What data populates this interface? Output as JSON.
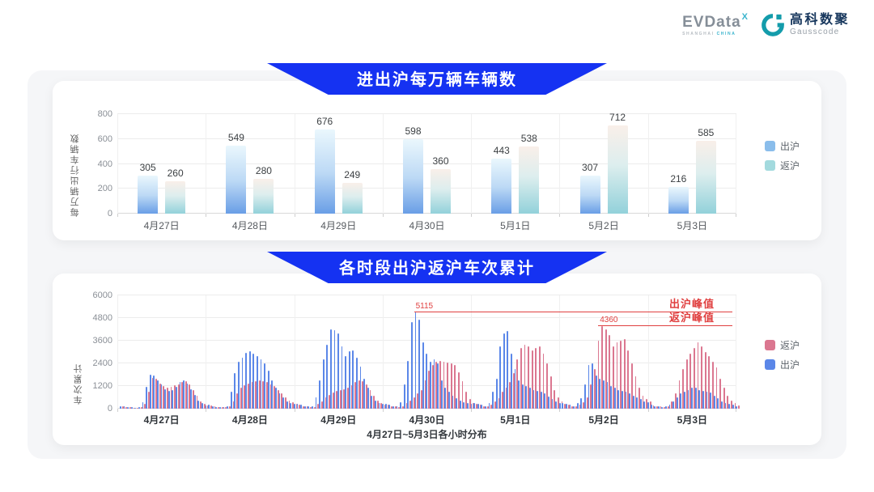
{
  "header": {
    "evdata": {
      "brand": "EVData",
      "sup": "X",
      "sub1": "SHANGHAI ",
      "sub2": "CHINA"
    },
    "gausscode": {
      "cn": "高科数聚",
      "en": "Gausscode"
    }
  },
  "colors": {
    "accent": "#1532f2",
    "red": "#e04040",
    "c1_out_legend": "#8abdeb",
    "c1_ret_legend": "#a3dade",
    "c2_out": "#5b87e8",
    "c2_ret": "#db7790"
  },
  "chart_data": [
    {
      "type": "bar",
      "title": "进出沪每万辆车辆数",
      "ylabel": "每万辆出行车辆数",
      "ylim": [
        0,
        800
      ],
      "yticks": [
        0,
        200,
        400,
        600,
        800
      ],
      "grid": true,
      "legend_position": "right",
      "categories": [
        "4月27日",
        "4月28日",
        "4月29日",
        "4月30日",
        "5月1日",
        "5月2日",
        "5月3日"
      ],
      "series": [
        {
          "name": "出沪",
          "values": [
            305,
            549,
            676,
            598,
            443,
            307,
            216
          ]
        },
        {
          "name": "返沪",
          "values": [
            260,
            280,
            249,
            360,
            538,
            712,
            585
          ]
        }
      ],
      "legend": [
        {
          "label": "出沪",
          "color": "#8abdeb"
        },
        {
          "label": "返沪",
          "color": "#a3dade"
        }
      ]
    },
    {
      "type": "bar",
      "title": "各时段出沪返沪车次累计",
      "ylabel": "车次累计",
      "x_subtitle": "4月27日~5月3日各小时分布",
      "ylim": [
        0,
        6000
      ],
      "yticks": [
        0,
        1200,
        2400,
        3600,
        4800,
        6000
      ],
      "grid": true,
      "legend_position": "right",
      "categories": [
        "4月27日",
        "4月28日",
        "4月29日",
        "4月30日",
        "5月1日",
        "5月2日",
        "5月3日"
      ],
      "hours_per_day": 24,
      "series": [
        {
          "name": "出沪",
          "color": "#5b87e8",
          "days": [
            [
              150,
              120,
              90,
              70,
              60,
              90,
              350,
              1150,
              1800,
              1750,
              1500,
              1300,
              1050,
              950,
              1000,
              1150,
              1400,
              1500,
              1350,
              1050,
              750,
              450,
              280,
              180
            ],
            [
              200,
              150,
              100,
              80,
              80,
              150,
              900,
              1900,
              2500,
              2700,
              2950,
              3050,
              2900,
              2800,
              2600,
              2400,
              2000,
              1500,
              1100,
              800,
              600,
              400,
              300,
              250
            ],
            [
              250,
              200,
              150,
              120,
              150,
              600,
              1500,
              2600,
              3400,
              4200,
              4150,
              4000,
              3300,
              2800,
              3050,
              3100,
              2700,
              2250,
              1600,
              1100,
              700,
              450,
              300,
              250
            ],
            [
              250,
              200,
              150,
              150,
              350,
              1300,
              2550,
              4600,
              5115,
              4700,
              3500,
              2900,
              2500,
              2600,
              2400,
              1500,
              1100,
              900,
              700,
              550,
              450,
              350,
              300,
              250
            ],
            [
              300,
              250,
              200,
              150,
              300,
              900,
              1600,
              3300,
              4000,
              4100,
              2900,
              2100,
              1500,
              1300,
              1200,
              1100,
              1000,
              950,
              900,
              800,
              650,
              500,
              400,
              300
            ],
            [
              300,
              250,
              200,
              150,
              300,
              550,
              1300,
              2300,
              2400,
              1750,
              1600,
              1500,
              1400,
              1200,
              1100,
              1000,
              950,
              900,
              800,
              700,
              600,
              500,
              400,
              350
            ],
            [
              200,
              150,
              120,
              100,
              120,
              200,
              400,
              600,
              800,
              900,
              1000,
              1100,
              1100,
              1000,
              950,
              900,
              850,
              700,
              550,
              400,
              300,
              250,
              200,
              150
            ]
          ]
        },
        {
          "name": "返沪",
          "color": "#db7790",
          "days": [
            [
              130,
              100,
              80,
              60,
              50,
              80,
              250,
              900,
              1650,
              1600,
              1350,
              1200,
              1100,
              1150,
              1250,
              1300,
              1400,
              1450,
              1300,
              1000,
              700,
              400,
              250,
              160
            ],
            [
              180,
              130,
              90,
              70,
              70,
              120,
              400,
              800,
              1100,
              1250,
              1350,
              1400,
              1450,
              1500,
              1450,
              1400,
              1300,
              1200,
              1000,
              800,
              600,
              450,
              350,
              250
            ],
            [
              200,
              150,
              120,
              100,
              100,
              250,
              400,
              600,
              750,
              850,
              950,
              1000,
              1050,
              1100,
              1250,
              1400,
              1500,
              1450,
              1300,
              1000,
              700,
              450,
              300,
              200
            ],
            [
              200,
              150,
              120,
              100,
              150,
              300,
              450,
              600,
              800,
              1000,
              1500,
              2000,
              2300,
              2500,
              2550,
              2500,
              2450,
              2400,
              2300,
              1950,
              1450,
              900,
              500,
              300
            ],
            [
              250,
              200,
              150,
              120,
              200,
              400,
              550,
              900,
              1100,
              1400,
              1900,
              2600,
              3200,
              3400,
              3300,
              3100,
              3200,
              3300,
              2900,
              2400,
              1700,
              1000,
              600,
              400
            ],
            [
              250,
              200,
              150,
              120,
              200,
              350,
              600,
              1300,
              2100,
              3600,
              4360,
              4200,
              3900,
              3300,
              3500,
              3600,
              3700,
              3100,
              2400,
              1700,
              1100,
              700,
              500,
              400
            ],
            [
              180,
              150,
              120,
              100,
              150,
              400,
              800,
              1500,
              2100,
              2600,
              2900,
              3200,
              3500,
              3300,
              3000,
              2800,
              2500,
              2200,
              1600,
              1100,
              700,
              450,
              300,
              180
            ]
          ]
        }
      ],
      "legend": [
        {
          "label": "返沪",
          "color": "#db7790"
        },
        {
          "label": "出沪",
          "color": "#5b87e8"
        }
      ],
      "annotations": [
        {
          "text": "出沪峰值",
          "value": 5115,
          "series": "出沪",
          "day": 3,
          "hour": 8
        },
        {
          "text": "返沪峰值",
          "value": 4360,
          "series": "返沪",
          "day": 5,
          "hour": 10
        }
      ]
    }
  ]
}
